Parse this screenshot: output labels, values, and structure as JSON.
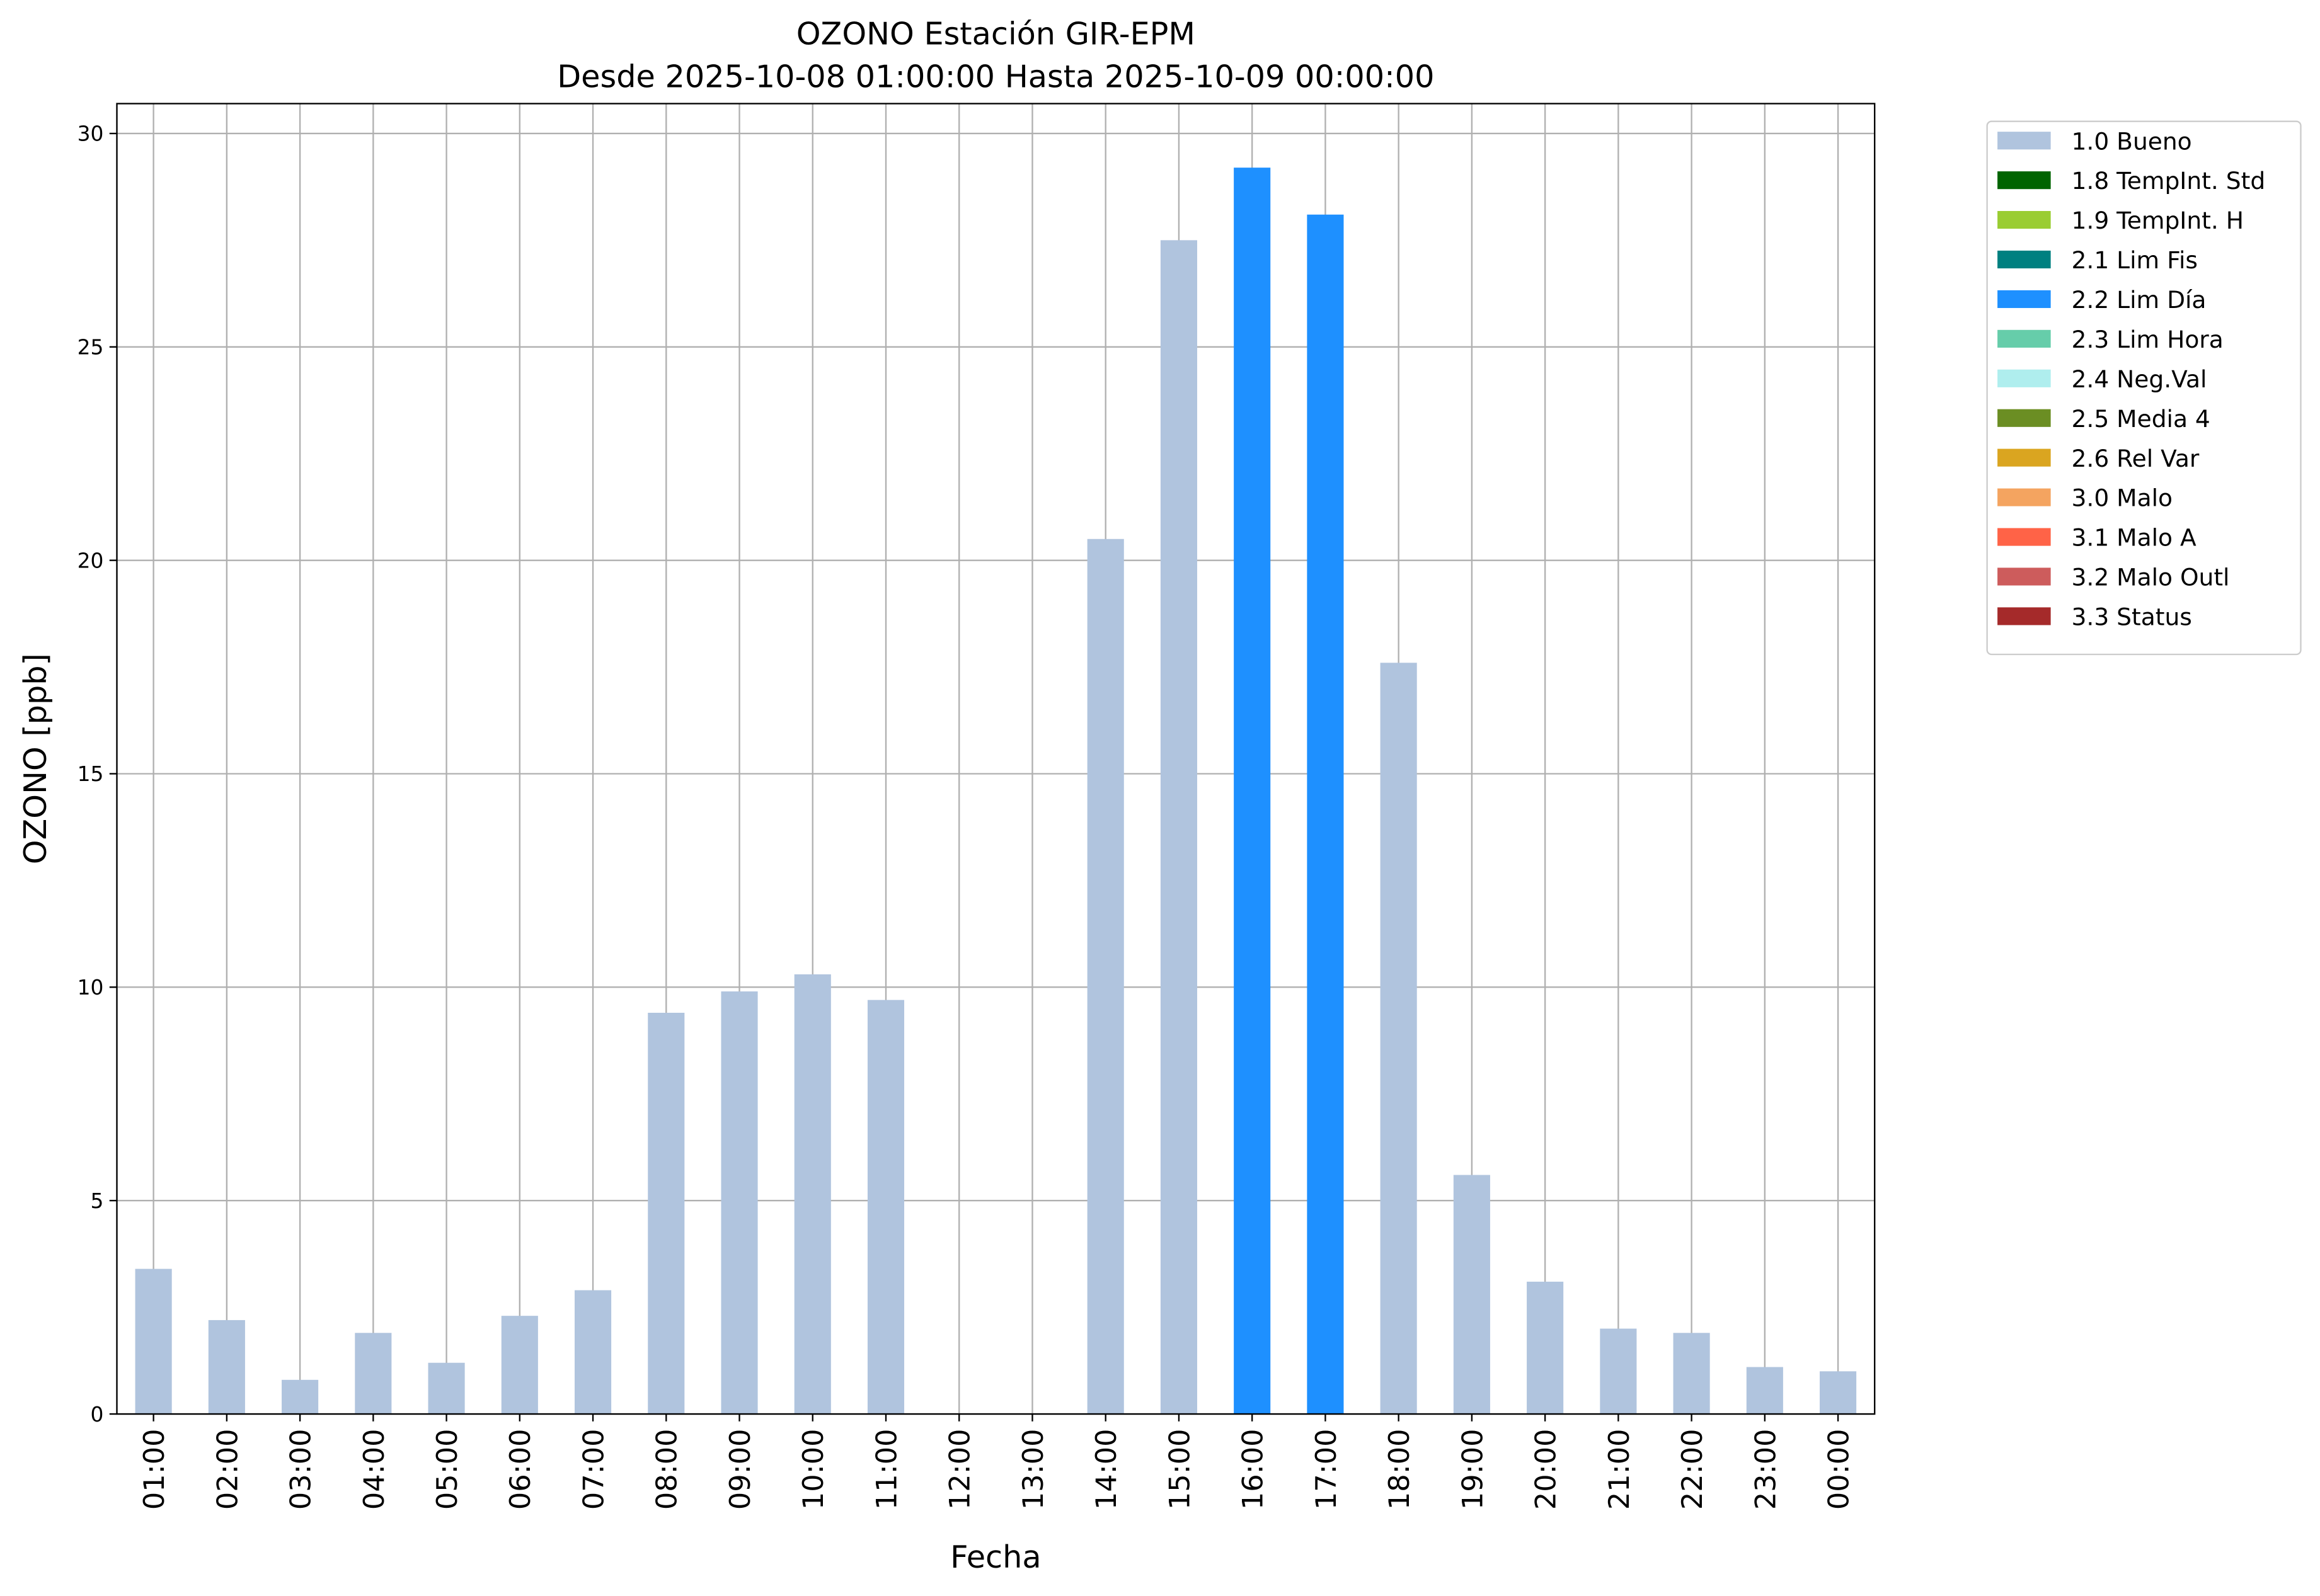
{
  "chart_data": {
    "type": "stacked_bar",
    "title": "OZONO Estación GIR-EPM",
    "subtitle": "Desde 2025-10-08 01:00:00 Hasta 2025-10-09 00:00:00",
    "x_label": "Fecha",
    "y_label": "OZONO [ppb]",
    "categories": [
      "01:00",
      "02:00",
      "03:00",
      "04:00",
      "05:00",
      "06:00",
      "07:00",
      "08:00",
      "09:00",
      "10:00",
      "11:00",
      "12:00",
      "13:00",
      "14:00",
      "15:00",
      "16:00",
      "17:00",
      "18:00",
      "19:00",
      "20:00",
      "21:00",
      "22:00",
      "23:00",
      "00:00"
    ],
    "series": [
      {
        "name": "1.0 Bueno",
        "color": "#b0c4de",
        "values": [
          3.4,
          2.2,
          0.8,
          1.9,
          1.2,
          2.3,
          2.9,
          9.4,
          9.9,
          10.3,
          9.7,
          null,
          null,
          20.5,
          27.5,
          null,
          null,
          17.6,
          5.6,
          3.1,
          2.0,
          1.9,
          1.1,
          1.0
        ]
      },
      {
        "name": "1.8 TempInt. Std",
        "color": "#006400",
        "values": [
          null,
          null,
          null,
          null,
          null,
          null,
          null,
          null,
          null,
          null,
          null,
          null,
          null,
          null,
          null,
          null,
          null,
          null,
          null,
          null,
          null,
          null,
          null,
          null
        ]
      },
      {
        "name": "1.9 TempInt. H",
        "color": "#9acd32",
        "values": [
          null,
          null,
          null,
          null,
          null,
          null,
          null,
          null,
          null,
          null,
          null,
          null,
          null,
          null,
          null,
          null,
          null,
          null,
          null,
          null,
          null,
          null,
          null,
          null
        ]
      },
      {
        "name": "2.1 Lim Fis",
        "color": "#008080",
        "values": [
          null,
          null,
          null,
          null,
          null,
          null,
          null,
          null,
          null,
          null,
          null,
          null,
          null,
          null,
          null,
          null,
          null,
          null,
          null,
          null,
          null,
          null,
          null,
          null
        ]
      },
      {
        "name": "2.2 Lim Día",
        "color": "#1e90ff",
        "values": [
          null,
          null,
          null,
          null,
          null,
          null,
          null,
          null,
          null,
          null,
          null,
          null,
          null,
          null,
          null,
          29.2,
          28.1,
          null,
          null,
          null,
          null,
          null,
          null,
          null
        ]
      },
      {
        "name": "2.3 Lim Hora",
        "color": "#66cdaa",
        "values": [
          null,
          null,
          null,
          null,
          null,
          null,
          null,
          null,
          null,
          null,
          null,
          null,
          null,
          null,
          null,
          null,
          null,
          null,
          null,
          null,
          null,
          null,
          null,
          null
        ]
      },
      {
        "name": "2.4 Neg.Val",
        "color": "#afeeee",
        "values": [
          null,
          null,
          null,
          null,
          null,
          null,
          null,
          null,
          null,
          null,
          null,
          null,
          null,
          null,
          null,
          null,
          null,
          null,
          null,
          null,
          null,
          null,
          null,
          null
        ]
      },
      {
        "name": "2.5 Media 4",
        "color": "#6b8e23",
        "values": [
          null,
          null,
          null,
          null,
          null,
          null,
          null,
          null,
          null,
          null,
          null,
          null,
          null,
          null,
          null,
          null,
          null,
          null,
          null,
          null,
          null,
          null,
          null,
          null
        ]
      },
      {
        "name": "2.6 Rel Var",
        "color": "#daa520",
        "values": [
          null,
          null,
          null,
          null,
          null,
          null,
          null,
          null,
          null,
          null,
          null,
          null,
          null,
          null,
          null,
          null,
          null,
          null,
          null,
          null,
          null,
          null,
          null,
          null
        ]
      },
      {
        "name": "3.0 Malo",
        "color": "#f4a460",
        "values": [
          null,
          null,
          null,
          null,
          null,
          null,
          null,
          null,
          null,
          null,
          null,
          null,
          null,
          null,
          null,
          null,
          null,
          null,
          null,
          null,
          null,
          null,
          null,
          null
        ]
      },
      {
        "name": "3.1 Malo A",
        "color": "#ff6347",
        "values": [
          null,
          null,
          null,
          null,
          null,
          null,
          null,
          null,
          null,
          null,
          null,
          null,
          null,
          null,
          null,
          null,
          null,
          null,
          null,
          null,
          null,
          null,
          null,
          null
        ]
      },
      {
        "name": "3.2 Malo Outl",
        "color": "#cd5c5c",
        "values": [
          null,
          null,
          null,
          null,
          null,
          null,
          null,
          null,
          null,
          null,
          null,
          null,
          null,
          null,
          null,
          null,
          null,
          null,
          null,
          null,
          null,
          null,
          null,
          null
        ]
      },
      {
        "name": "3.3 Status",
        "color": "#a52a2a",
        "values": [
          null,
          null,
          null,
          null,
          null,
          null,
          null,
          null,
          null,
          null,
          null,
          null,
          null,
          null,
          null,
          null,
          null,
          null,
          null,
          null,
          null,
          null,
          null,
          null
        ]
      }
    ],
    "ylim": [
      0,
      30.7
    ],
    "yticks": [
      0,
      5,
      10,
      15,
      20,
      25,
      30
    ],
    "grid": true
  }
}
